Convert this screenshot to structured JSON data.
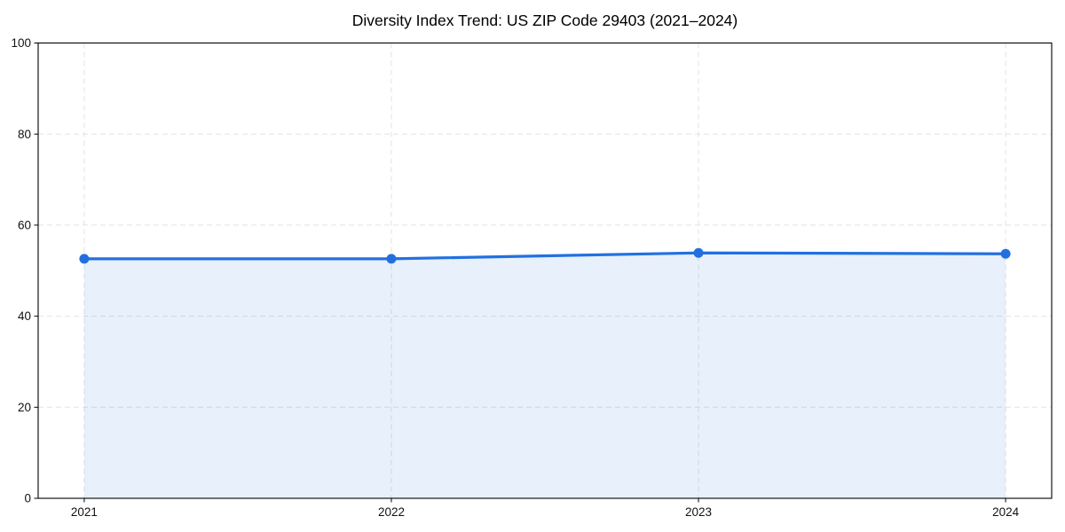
{
  "chart_data": {
    "type": "area",
    "title": "Diversity Index Trend: US ZIP Code 29403 (2021–2024)",
    "x": [
      "2021",
      "2022",
      "2023",
      "2024"
    ],
    "values": [
      52.6,
      52.6,
      53.9,
      53.7
    ],
    "series_name": "Diversity Index",
    "xlabel": "",
    "ylabel": "",
    "ylim": [
      0,
      100
    ],
    "yticks": [
      0,
      20,
      40,
      60,
      80,
      100
    ],
    "grid": true,
    "grid_style": "dashed",
    "legend_position": "none",
    "fill_opacity": 0.1,
    "marker": "circle",
    "colors": {
      "line": "#2270e0",
      "marker": "#2270e0",
      "fill_base": "#2270e0",
      "grid": "#e2e2e2",
      "axis": "#000000",
      "tick_label": "#111111",
      "title": "#000000",
      "background": "#ffffff"
    }
  }
}
